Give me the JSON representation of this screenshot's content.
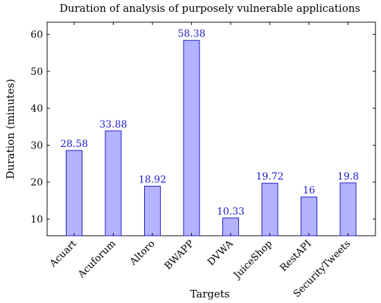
{
  "chart_data": {
    "type": "bar",
    "title": "Duration of analysis of purposely vulnerable applications",
    "xlabel": "Targets",
    "ylabel": "Duration (minutes)",
    "categories": [
      "Acuart",
      "Acuforum",
      "Altoro",
      "BWAPP",
      "DVWA",
      "JuiceShop",
      "RestAPI",
      "SecurityTweets"
    ],
    "values": [
      28.58,
      33.88,
      18.92,
      58.38,
      10.33,
      19.72,
      16,
      19.8
    ],
    "data_labels": [
      "28.58",
      "33.88",
      "18.92",
      "58.38",
      "10.33",
      "19.72",
      "16",
      "19.8"
    ],
    "yticks": [
      10,
      20,
      30,
      40,
      50,
      60
    ],
    "ylim": [
      5.5,
      63.3
    ],
    "grid": false,
    "bar_fill": "#b3b3ff",
    "bar_stroke": "#1a1acc",
    "label_color": "#1a1acc"
  }
}
